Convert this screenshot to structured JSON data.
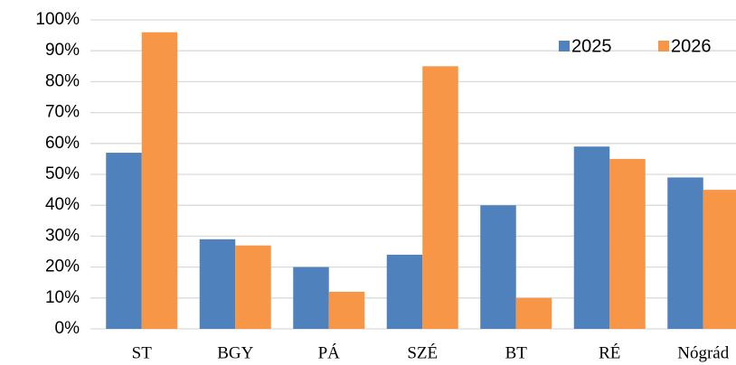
{
  "chart_data": {
    "type": "bar",
    "categories": [
      "ST",
      "BGY",
      "PÁ",
      "SZÉ",
      "BT",
      "RÉ",
      "Nógrád"
    ],
    "series": [
      {
        "name": "2025",
        "color": "#4f81bd",
        "values": [
          57,
          29,
          20,
          24,
          40,
          59,
          49
        ]
      },
      {
        "name": "2026",
        "color": "#f79646",
        "values": [
          96,
          27,
          12,
          85,
          10,
          55,
          45
        ]
      }
    ],
    "ylim": [
      0,
      100
    ],
    "yticks": [
      {
        "value": 0,
        "label": "0%"
      },
      {
        "value": 10,
        "label": "10%"
      },
      {
        "value": 20,
        "label": "20%"
      },
      {
        "value": 30,
        "label": "30%"
      },
      {
        "value": 40,
        "label": "40%"
      },
      {
        "value": 50,
        "label": "50%"
      },
      {
        "value": 60,
        "label": "60%"
      },
      {
        "value": 70,
        "label": "70%"
      },
      {
        "value": 80,
        "label": "80%"
      },
      {
        "value": 90,
        "label": "90%"
      },
      {
        "value": 100,
        "label": "100%"
      }
    ],
    "grid": true,
    "legend": "top-right"
  }
}
